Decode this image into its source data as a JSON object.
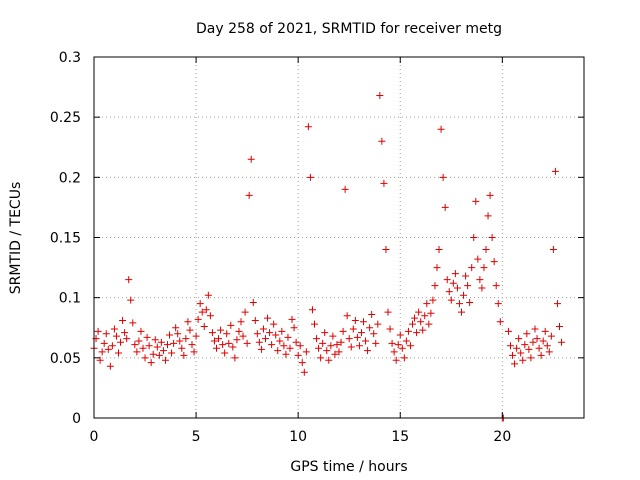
{
  "chart_data": {
    "type": "scatter",
    "title": "Day 258 of 2021, SRMTID for receiver metg",
    "xlabel": "GPS time / hours",
    "ylabel": "SRMTID / TECUs",
    "xlim": [
      0,
      24
    ],
    "ylim": [
      0,
      0.3
    ],
    "x_ticks": [
      "0",
      "5",
      "10",
      "15",
      "20"
    ],
    "y_ticks": [
      "0",
      "0.05",
      "0.1",
      "0.15",
      "0.2",
      "0.25",
      "0.3"
    ],
    "x_tick_values": [
      0,
      5,
      10,
      15,
      20
    ],
    "y_tick_values": [
      0,
      0.05,
      0.1,
      0.15,
      0.2,
      0.25,
      0.3
    ],
    "grid": true,
    "marker": "+",
    "color": "#e00000",
    "series": [
      {
        "name": "SRMTID",
        "points": [
          [
            0.0,
            0.058
          ],
          [
            0.1,
            0.066
          ],
          [
            0.2,
            0.072
          ],
          [
            0.3,
            0.048
          ],
          [
            0.4,
            0.055
          ],
          [
            0.5,
            0.062
          ],
          [
            0.6,
            0.07
          ],
          [
            0.7,
            0.057
          ],
          [
            0.8,
            0.043
          ],
          [
            0.9,
            0.06
          ],
          [
            1.0,
            0.074
          ],
          [
            1.1,
            0.068
          ],
          [
            1.2,
            0.054
          ],
          [
            1.3,
            0.063
          ],
          [
            1.4,
            0.081
          ],
          [
            1.5,
            0.071
          ],
          [
            1.6,
            0.066
          ],
          [
            1.7,
            0.115
          ],
          [
            1.8,
            0.098
          ],
          [
            1.9,
            0.079
          ],
          [
            2.0,
            0.061
          ],
          [
            2.1,
            0.055
          ],
          [
            2.2,
            0.064
          ],
          [
            2.3,
            0.072
          ],
          [
            2.4,
            0.058
          ],
          [
            2.5,
            0.05
          ],
          [
            2.6,
            0.067
          ],
          [
            2.7,
            0.06
          ],
          [
            2.8,
            0.046
          ],
          [
            2.9,
            0.053
          ],
          [
            3.0,
            0.065
          ],
          [
            3.1,
            0.059
          ],
          [
            3.2,
            0.052
          ],
          [
            3.3,
            0.063
          ],
          [
            3.4,
            0.056
          ],
          [
            3.5,
            0.048
          ],
          [
            3.6,
            0.061
          ],
          [
            3.7,
            0.069
          ],
          [
            3.8,
            0.054
          ],
          [
            3.9,
            0.062
          ],
          [
            4.0,
            0.075
          ],
          [
            4.1,
            0.07
          ],
          [
            4.2,
            0.064
          ],
          [
            4.3,
            0.058
          ],
          [
            4.4,
            0.052
          ],
          [
            4.5,
            0.066
          ],
          [
            4.6,
            0.08
          ],
          [
            4.7,
            0.073
          ],
          [
            4.8,
            0.061
          ],
          [
            4.9,
            0.055
          ],
          [
            5.0,
            0.068
          ],
          [
            5.1,
            0.082
          ],
          [
            5.2,
            0.095
          ],
          [
            5.3,
            0.088
          ],
          [
            5.4,
            0.076
          ],
          [
            5.5,
            0.09
          ],
          [
            5.6,
            0.102
          ],
          [
            5.7,
            0.085
          ],
          [
            5.8,
            0.071
          ],
          [
            5.9,
            0.064
          ],
          [
            6.0,
            0.058
          ],
          [
            6.1,
            0.066
          ],
          [
            6.2,
            0.073
          ],
          [
            6.3,
            0.061
          ],
          [
            6.4,
            0.054
          ],
          [
            6.5,
            0.07
          ],
          [
            6.6,
            0.062
          ],
          [
            6.7,
            0.077
          ],
          [
            6.8,
            0.059
          ],
          [
            6.9,
            0.05
          ],
          [
            7.0,
            0.065
          ],
          [
            7.1,
            0.072
          ],
          [
            7.2,
            0.08
          ],
          [
            7.3,
            0.068
          ],
          [
            7.4,
            0.088
          ],
          [
            7.5,
            0.062
          ],
          [
            7.6,
            0.185
          ],
          [
            7.7,
            0.215
          ],
          [
            7.8,
            0.096
          ],
          [
            7.9,
            0.081
          ],
          [
            8.0,
            0.07
          ],
          [
            8.1,
            0.063
          ],
          [
            8.2,
            0.057
          ],
          [
            8.3,
            0.074
          ],
          [
            8.4,
            0.066
          ],
          [
            8.5,
            0.083
          ],
          [
            8.6,
            0.071
          ],
          [
            8.7,
            0.061
          ],
          [
            8.8,
            0.078
          ],
          [
            8.9,
            0.069
          ],
          [
            9.0,
            0.056
          ],
          [
            9.1,
            0.064
          ],
          [
            9.2,
            0.072
          ],
          [
            9.3,
            0.06
          ],
          [
            9.4,
            0.053
          ],
          [
            9.5,
            0.067
          ],
          [
            9.6,
            0.058
          ],
          [
            9.7,
            0.082
          ],
          [
            9.8,
            0.075
          ],
          [
            9.9,
            0.063
          ],
          [
            10.0,
            0.052
          ],
          [
            10.1,
            0.06
          ],
          [
            10.2,
            0.046
          ],
          [
            10.3,
            0.038
          ],
          [
            10.4,
            0.055
          ],
          [
            10.5,
            0.242
          ],
          [
            10.6,
            0.2
          ],
          [
            10.7,
            0.09
          ],
          [
            10.8,
            0.078
          ],
          [
            10.9,
            0.066
          ],
          [
            11.0,
            0.058
          ],
          [
            11.1,
            0.05
          ],
          [
            11.2,
            0.062
          ],
          [
            11.3,
            0.071
          ],
          [
            11.4,
            0.056
          ],
          [
            11.5,
            0.048
          ],
          [
            11.6,
            0.06
          ],
          [
            11.7,
            0.068
          ],
          [
            11.8,
            0.053
          ],
          [
            11.9,
            0.061
          ],
          [
            12.0,
            0.055
          ],
          [
            12.1,
            0.063
          ],
          [
            12.2,
            0.072
          ],
          [
            12.3,
            0.19
          ],
          [
            12.4,
            0.085
          ],
          [
            12.5,
            0.066
          ],
          [
            12.6,
            0.059
          ],
          [
            12.7,
            0.074
          ],
          [
            12.8,
            0.081
          ],
          [
            12.9,
            0.067
          ],
          [
            13.0,
            0.06
          ],
          [
            13.1,
            0.071
          ],
          [
            13.2,
            0.08
          ],
          [
            13.3,
            0.064
          ],
          [
            13.4,
            0.056
          ],
          [
            13.5,
            0.075
          ],
          [
            13.6,
            0.086
          ],
          [
            13.7,
            0.07
          ],
          [
            13.8,
            0.062
          ],
          [
            13.9,
            0.078
          ],
          [
            14.0,
            0.268
          ],
          [
            14.1,
            0.23
          ],
          [
            14.2,
            0.195
          ],
          [
            14.3,
            0.14
          ],
          [
            14.4,
            0.088
          ],
          [
            14.5,
            0.074
          ],
          [
            14.6,
            0.062
          ],
          [
            14.7,
            0.055
          ],
          [
            14.8,
            0.048
          ],
          [
            14.9,
            0.061
          ],
          [
            15.0,
            0.069
          ],
          [
            15.1,
            0.058
          ],
          [
            15.2,
            0.05
          ],
          [
            15.3,
            0.064
          ],
          [
            15.4,
            0.072
          ],
          [
            15.5,
            0.06
          ],
          [
            15.6,
            0.078
          ],
          [
            15.7,
            0.083
          ],
          [
            15.8,
            0.071
          ],
          [
            15.9,
            0.088
          ],
          [
            16.0,
            0.08
          ],
          [
            16.1,
            0.073
          ],
          [
            16.2,
            0.085
          ],
          [
            16.3,
            0.095
          ],
          [
            16.4,
            0.078
          ],
          [
            16.5,
            0.087
          ],
          [
            16.6,
            0.098
          ],
          [
            16.7,
            0.11
          ],
          [
            16.8,
            0.125
          ],
          [
            16.9,
            0.14
          ],
          [
            17.0,
            0.24
          ],
          [
            17.1,
            0.2
          ],
          [
            17.2,
            0.175
          ],
          [
            17.3,
            0.115
          ],
          [
            17.4,
            0.105
          ],
          [
            17.5,
            0.098
          ],
          [
            17.6,
            0.112
          ],
          [
            17.7,
            0.12
          ],
          [
            17.8,
            0.108
          ],
          [
            17.9,
            0.095
          ],
          [
            18.0,
            0.088
          ],
          [
            18.1,
            0.102
          ],
          [
            18.2,
            0.118
          ],
          [
            18.3,
            0.11
          ],
          [
            18.4,
            0.096
          ],
          [
            18.5,
            0.125
          ],
          [
            18.6,
            0.15
          ],
          [
            18.7,
            0.18
          ],
          [
            18.8,
            0.132
          ],
          [
            18.9,
            0.115
          ],
          [
            19.0,
            0.108
          ],
          [
            19.1,
            0.125
          ],
          [
            19.2,
            0.14
          ],
          [
            19.3,
            0.168
          ],
          [
            19.4,
            0.185
          ],
          [
            19.5,
            0.15
          ],
          [
            19.6,
            0.13
          ],
          [
            19.7,
            0.11
          ],
          [
            19.8,
            0.095
          ],
          [
            19.9,
            0.08
          ],
          [
            20.0,
            0.0
          ],
          [
            20.05,
            0.0
          ],
          [
            20.3,
            0.072
          ],
          [
            20.4,
            0.06
          ],
          [
            20.5,
            0.052
          ],
          [
            20.6,
            0.045
          ],
          [
            20.7,
            0.058
          ],
          [
            20.8,
            0.066
          ],
          [
            20.9,
            0.054
          ],
          [
            21.0,
            0.048
          ],
          [
            21.1,
            0.061
          ],
          [
            21.2,
            0.07
          ],
          [
            21.3,
            0.057
          ],
          [
            21.4,
            0.05
          ],
          [
            21.5,
            0.063
          ],
          [
            21.6,
            0.074
          ],
          [
            21.7,
            0.066
          ],
          [
            21.8,
            0.058
          ],
          [
            21.9,
            0.052
          ],
          [
            22.0,
            0.064
          ],
          [
            22.1,
            0.072
          ],
          [
            22.2,
            0.06
          ],
          [
            22.3,
            0.055
          ],
          [
            22.4,
            0.068
          ],
          [
            22.5,
            0.14
          ],
          [
            22.6,
            0.205
          ],
          [
            22.7,
            0.095
          ],
          [
            22.8,
            0.076
          ],
          [
            22.9,
            0.063
          ]
        ]
      }
    ]
  }
}
